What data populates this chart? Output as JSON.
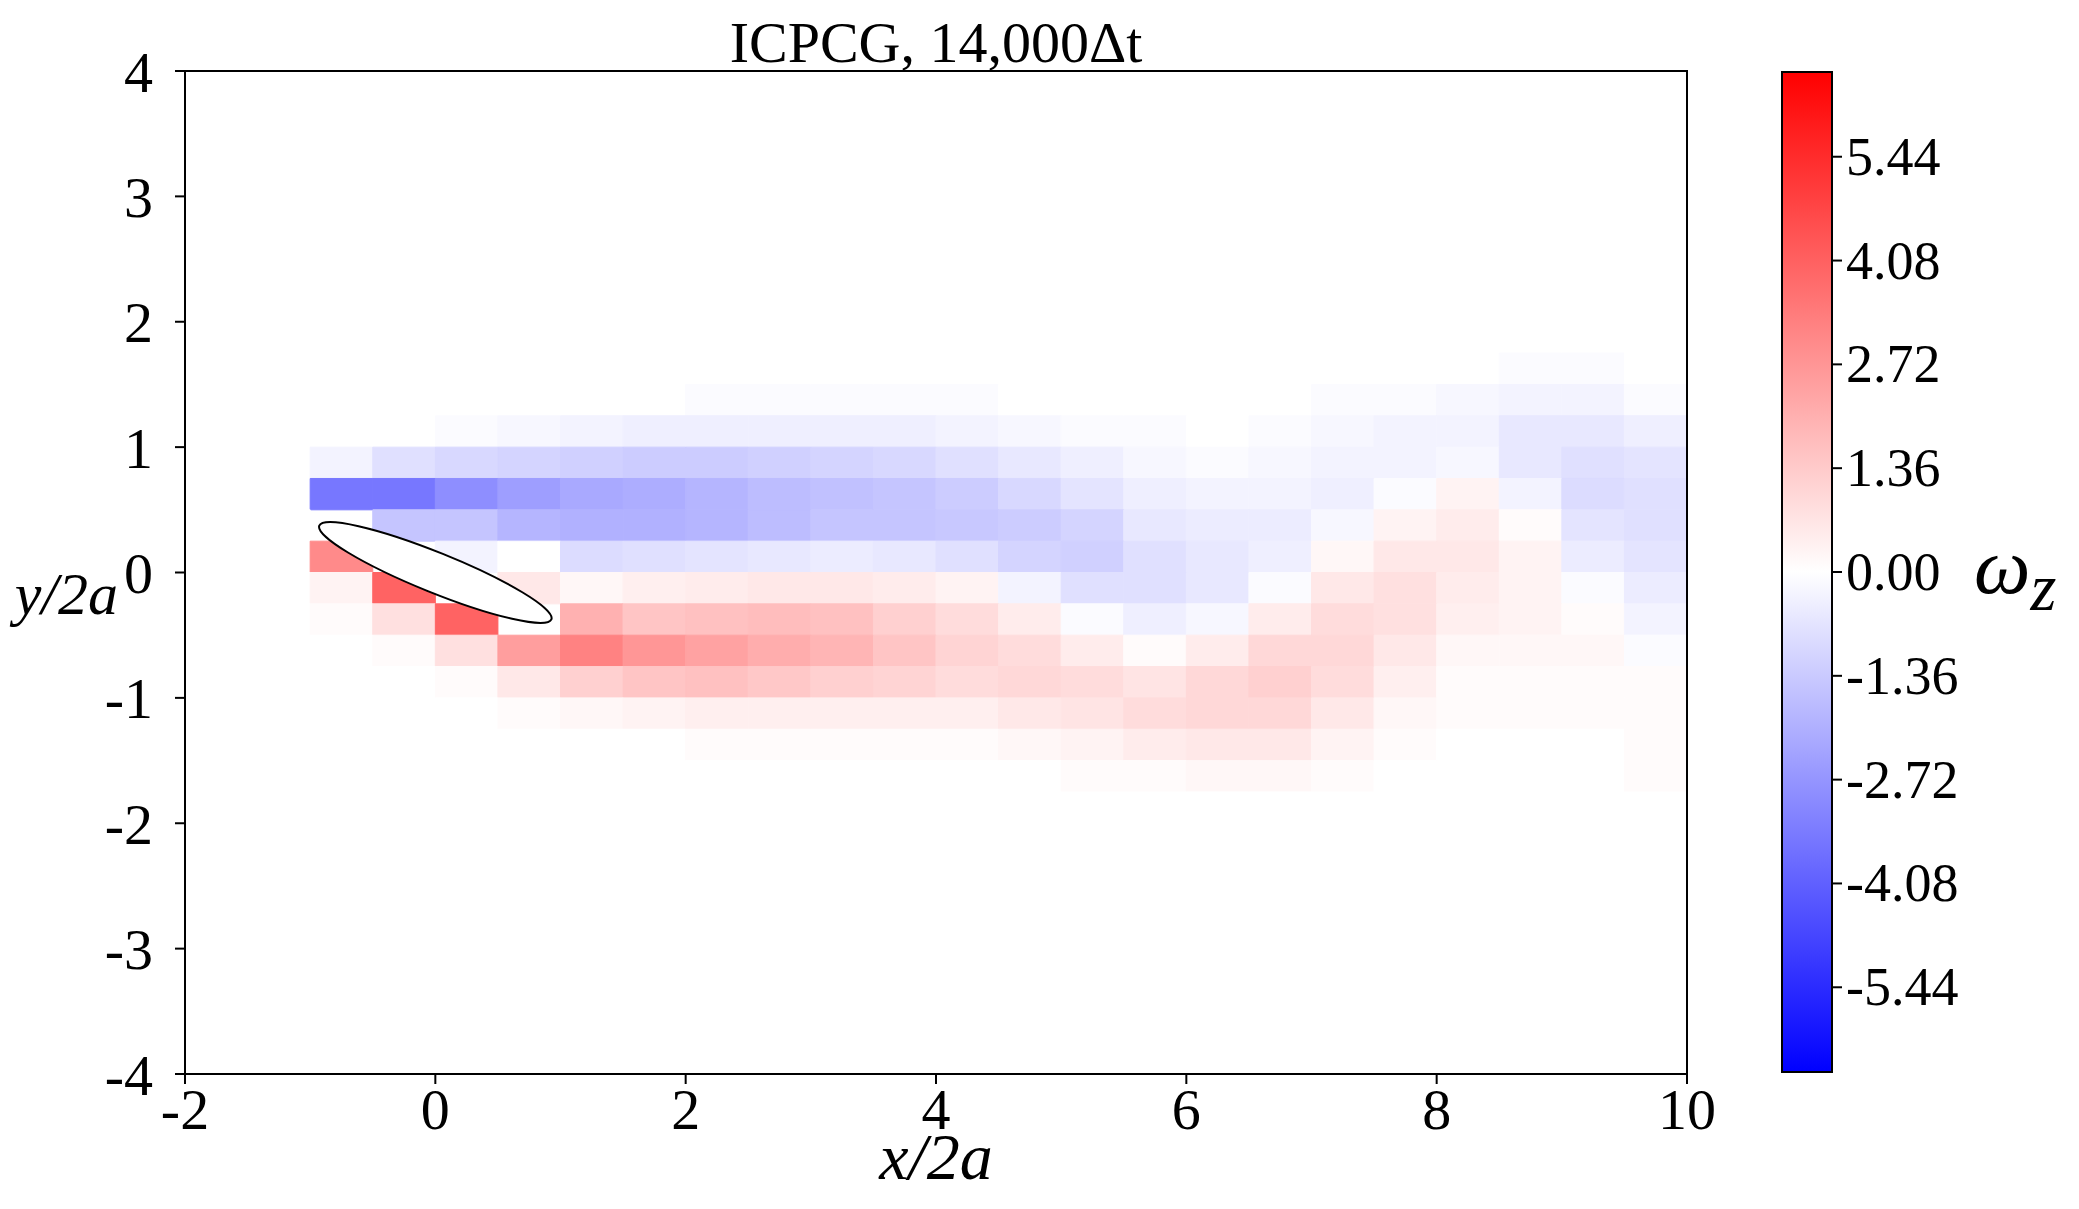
{
  "chart_data": {
    "type": "heatmap",
    "title": "ICPCG, 14,000Δt",
    "xlabel": "x/2a",
    "ylabel": "y/2a",
    "clabel": "ω$_{z}$",
    "xlim": [
      -2,
      10
    ],
    "xticks": [
      -2,
      0,
      2,
      4,
      6,
      8,
      10
    ],
    "ylim": [
      -4,
      4
    ],
    "yticks": [
      -4,
      -3,
      -2,
      -1,
      0,
      1,
      2,
      3,
      4
    ],
    "clim": [
      -6.55,
      6.55
    ],
    "cticks": [
      -5.44,
      -4.08,
      -2.72,
      -1.36,
      {
        "value": 0,
        "label": "0.00"
      },
      1.36,
      2.72,
      4.08,
      5.44
    ],
    "cells": [
      [
        0,
        0,
        0,
        0,
        0,
        0,
        0,
        0,
        0,
        0,
        0,
        0,
        0,
        0,
        0,
        0,
        0,
        0,
        0,
        0,
        0,
        0,
        0,
        0
      ],
      [
        0,
        0,
        0,
        0,
        0,
        0,
        0,
        0,
        0,
        0,
        0,
        0,
        0,
        0,
        0,
        0,
        0,
        0,
        0,
        0,
        0,
        0,
        0,
        0
      ],
      [
        0,
        0,
        0,
        0,
        0,
        0,
        0,
        0,
        0,
        0,
        0,
        0,
        0,
        0,
        0,
        0,
        0,
        0,
        0,
        0,
        0,
        0,
        0,
        0
      ],
      [
        0,
        0,
        0,
        0,
        0,
        0,
        0,
        0,
        0,
        0,
        0,
        0,
        0,
        0,
        0,
        0,
        0,
        0,
        0,
        0,
        0,
        0,
        0,
        0
      ],
      [
        0,
        0,
        0,
        0,
        0,
        0,
        0,
        0,
        0,
        0,
        0,
        0,
        0,
        0,
        0,
        0,
        0,
        0,
        0,
        0,
        0,
        0,
        0,
        0
      ],
      [
        0,
        0,
        0,
        0,
        0,
        0,
        0,
        0,
        0,
        0,
        0,
        0,
        0,
        0,
        0,
        0,
        0,
        0,
        0,
        0,
        0,
        0,
        0,
        0
      ],
      [
        0,
        0,
        0,
        0,
        0,
        0,
        0,
        0,
        0,
        0,
        0,
        0,
        0,
        0,
        0,
        0,
        0,
        0,
        0,
        0,
        0,
        0,
        0,
        0
      ],
      [
        0,
        0,
        0,
        0,
        0,
        0,
        0,
        0,
        0,
        0,
        0,
        0,
        0,
        0,
        0,
        0,
        0,
        0,
        0,
        0,
        0,
        0,
        0,
        0
      ],
      [
        0,
        0,
        0,
        0,
        0,
        0,
        0,
        0,
        0,
        0,
        0,
        0,
        0,
        0,
        0,
        0,
        0,
        0,
        0,
        0,
        0,
        0,
        0,
        0
      ],
      [
        0,
        0,
        0,
        0,
        0,
        0,
        0,
        0,
        0,
        0,
        0,
        0,
        0,
        0,
        0,
        0,
        0,
        0,
        0,
        0,
        0,
        -0.1,
        -0.1,
        0
      ],
      [
        0,
        0,
        0,
        0,
        0,
        0,
        0,
        0,
        -0.1,
        -0.1,
        -0.1,
        -0.1,
        -0.1,
        0,
        0,
        0,
        0,
        0,
        -0.1,
        -0.1,
        -0.2,
        -0.3,
        -0.3,
        -0.1
      ],
      [
        0,
        0,
        0,
        0,
        -0.1,
        -0.2,
        -0.3,
        -0.4,
        -0.4,
        -0.4,
        -0.4,
        -0.4,
        -0.3,
        -0.2,
        -0.1,
        -0.1,
        0,
        -0.1,
        -0.2,
        -0.3,
        -0.3,
        -0.6,
        -0.6,
        -0.4
      ],
      [
        0,
        0,
        -0.3,
        -0.8,
        -1.0,
        -1.1,
        -1.2,
        -1.3,
        -1.3,
        -1.2,
        -1.1,
        -1.0,
        -0.8,
        -0.6,
        -0.4,
        -0.2,
        -0.1,
        -0.2,
        -0.3,
        -0.3,
        -0.2,
        -0.6,
        -0.8,
        -0.7
      ],
      [
        0,
        0,
        -3.5,
        -3.5,
        -2.9,
        -2.5,
        -2.2,
        -2.1,
        -1.9,
        -1.7,
        -1.6,
        -1.5,
        -1.3,
        -1.0,
        -0.7,
        -0.4,
        -0.3,
        -0.3,
        -0.4,
        -0.1,
        0.3,
        -0.3,
        -0.9,
        -0.8
      ],
      [
        0,
        0,
        null,
        -1.5,
        -1.5,
        -1.9,
        -2.0,
        -2.0,
        -1.9,
        -1.7,
        -1.5,
        -1.5,
        -1.4,
        -1.3,
        -1.1,
        -0.6,
        -0.5,
        -0.5,
        -0.2,
        0.3,
        0.5,
        0.1,
        -0.7,
        -0.8
      ],
      [
        0,
        0,
        3.0,
        null,
        -0.3,
        0,
        -0.9,
        -0.8,
        -0.7,
        -0.6,
        -0.5,
        -0.6,
        -0.8,
        -1.1,
        -1.2,
        -0.8,
        -0.6,
        -0.4,
        0.2,
        0.6,
        0.6,
        0.3,
        -0.5,
        -0.7
      ],
      [
        0,
        0,
        0.3,
        4.0,
        null,
        0.6,
        0.2,
        0.4,
        0.5,
        0.6,
        0.6,
        0.5,
        0.3,
        -0.3,
        -0.8,
        -0.8,
        -0.6,
        -0.1,
        0.6,
        0.8,
        0.5,
        0.3,
        -0.1,
        -0.5
      ],
      [
        0,
        0,
        0.1,
        0.8,
        4.0,
        null,
        2.0,
        1.5,
        1.6,
        1.7,
        1.6,
        1.2,
        0.9,
        0.5,
        -0.1,
        -0.4,
        -0.2,
        0.5,
        0.9,
        0.8,
        0.4,
        0.3,
        0.1,
        -0.3
      ],
      [
        0,
        0,
        0,
        0.1,
        0.8,
        2.5,
        3.2,
        2.7,
        2.4,
        2.1,
        1.9,
        1.5,
        1.1,
        0.9,
        0.5,
        0.1,
        0.5,
        1.0,
        1.0,
        0.6,
        0.2,
        0.2,
        0.2,
        -0.1
      ],
      [
        0,
        0,
        0,
        0,
        0.1,
        0.6,
        1.2,
        1.5,
        1.6,
        1.4,
        1.2,
        1.1,
        0.9,
        1.0,
        0.9,
        0.7,
        1.0,
        1.2,
        0.9,
        0.4,
        0.1,
        0.1,
        0.1,
        0.1
      ],
      [
        0,
        0,
        0,
        0,
        0,
        0.1,
        0.2,
        0.3,
        0.4,
        0.4,
        0.4,
        0.4,
        0.4,
        0.6,
        0.7,
        0.9,
        1.0,
        1.0,
        0.6,
        0.2,
        0.1,
        0.1,
        0.1,
        0.1
      ],
      [
        0,
        0,
        0,
        0,
        0,
        0,
        0,
        0,
        0.1,
        0.1,
        0.1,
        0.1,
        0.1,
        0.2,
        0.3,
        0.5,
        0.6,
        0.6,
        0.3,
        0.1,
        0,
        0,
        0,
        0.1
      ],
      [
        0,
        0,
        0,
        0,
        0,
        0,
        0,
        0,
        0,
        0,
        0,
        0,
        0,
        0,
        0.1,
        0.1,
        0.2,
        0.2,
        0.1,
        0,
        0,
        0,
        0,
        0.1
      ],
      [
        0,
        0,
        0,
        0,
        0,
        0,
        0,
        0,
        0,
        0,
        0,
        0,
        0,
        0,
        0,
        0,
        0,
        0,
        0,
        0,
        0,
        0,
        0,
        0
      ],
      [
        0,
        0,
        0,
        0,
        0,
        0,
        0,
        0,
        0,
        0,
        0,
        0,
        0,
        0,
        0,
        0,
        0,
        0,
        0,
        0,
        0,
        0,
        0,
        0
      ],
      [
        0,
        0,
        0,
        0,
        0,
        0,
        0,
        0,
        0,
        0,
        0,
        0,
        0,
        0,
        0,
        0,
        0,
        0,
        0,
        0,
        0,
        0,
        0,
        0
      ],
      [
        0,
        0,
        0,
        0,
        0,
        0,
        0,
        0,
        0,
        0,
        0,
        0,
        0,
        0,
        0,
        0,
        0,
        0,
        0,
        0,
        0,
        0,
        0,
        0
      ],
      [
        0,
        0,
        0,
        0,
        0,
        0,
        0,
        0,
        0,
        0,
        0,
        0,
        0,
        0,
        0,
        0,
        0,
        0,
        0,
        0,
        0,
        0,
        0,
        0
      ],
      [
        0,
        0,
        0,
        0,
        0,
        0,
        0,
        0,
        0,
        0,
        0,
        0,
        0,
        0,
        0,
        0,
        0,
        0,
        0,
        0,
        0,
        0,
        0,
        0
      ],
      [
        0,
        0,
        0,
        0,
        0,
        0,
        0,
        0,
        0,
        0,
        0,
        0,
        0,
        0,
        0,
        0,
        0,
        0,
        0,
        0,
        0,
        0,
        0,
        0
      ],
      [
        0,
        0,
        0,
        0,
        0,
        0,
        0,
        0,
        0,
        0,
        0,
        0,
        0,
        0,
        0,
        0,
        0,
        0,
        0,
        0,
        0,
        0,
        0,
        0
      ],
      [
        0,
        0,
        0,
        0,
        0,
        0,
        0,
        0,
        0,
        0,
        0,
        0,
        0,
        0,
        0,
        0,
        0,
        0,
        0,
        0,
        0,
        0,
        0,
        0
      ]
    ]
  }
}
